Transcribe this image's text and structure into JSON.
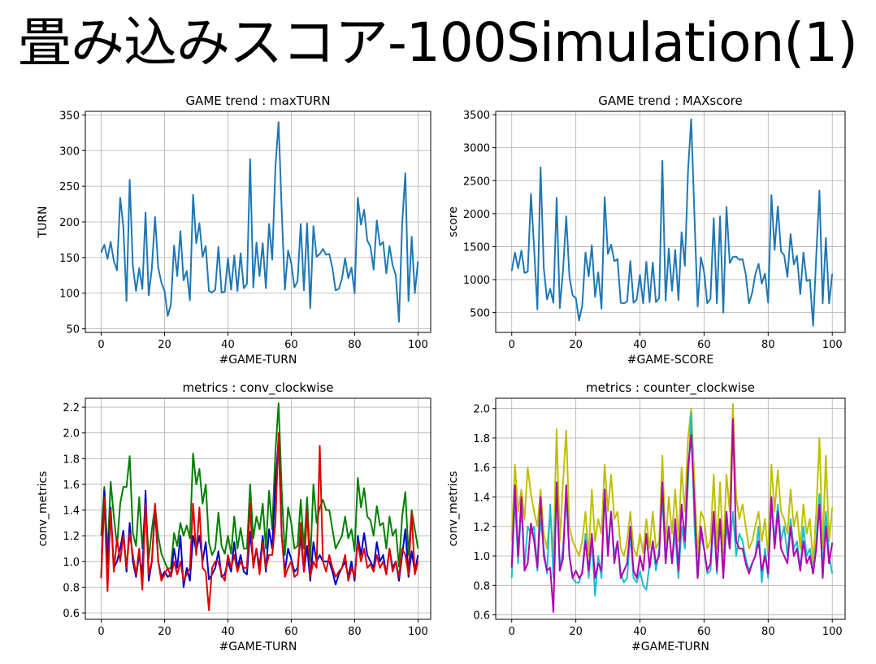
{
  "slide": {
    "title": "畳み込みスコア-100Simulation(1)"
  },
  "chart_data": [
    {
      "type": "line",
      "title": "GAME trend : maxTURN",
      "xlabel": "#GAME-TURN",
      "ylabel": "TURN",
      "xlim": [
        -5,
        104
      ],
      "ylim": [
        45,
        355
      ],
      "xticks": [
        0,
        20,
        40,
        60,
        80,
        100
      ],
      "yticks": [
        50,
        100,
        150,
        200,
        250,
        300,
        350
      ],
      "grid": true,
      "series": [
        {
          "color": "#1f77b4",
          "values": [
            157,
            168,
            148,
            172,
            145,
            132,
            234,
            193,
            89,
            259,
            138,
            103,
            135,
            106,
            213,
            97,
            135,
            207,
            136,
            115,
            103,
            68,
            84,
            167,
            124,
            187,
            118,
            131,
            90,
            238,
            170,
            198,
            151,
            166,
            103,
            101,
            105,
            165,
            101,
            102,
            149,
            105,
            153,
            103,
            156,
            107,
            113,
            288,
            108,
            171,
            124,
            170,
            107,
            197,
            147,
            276,
            340,
            215,
            105,
            160,
            142,
            108,
            117,
            197,
            104,
            198,
            79,
            194,
            151,
            155,
            162,
            154,
            155,
            135,
            104,
            106,
            120,
            149,
            121,
            136,
            100,
            234,
            196,
            217,
            174,
            165,
            133,
            202,
            167,
            172,
            128,
            166,
            139,
            125,
            60,
            197,
            268,
            89,
            179,
            100,
            145
          ]
        }
      ]
    },
    {
      "type": "line",
      "title": "GAME trend : MAXscore",
      "xlabel": "#GAME-SCORE",
      "ylabel": "score",
      "xlim": [
        -5,
        104
      ],
      "ylim": [
        200,
        3550
      ],
      "xticks": [
        0,
        20,
        40,
        60,
        80,
        100
      ],
      "yticks": [
        500,
        1000,
        1500,
        2000,
        2500,
        3000,
        3500
      ],
      "grid": true,
      "series": [
        {
          "color": "#1f77b4",
          "values": [
            1130,
            1410,
            1170,
            1440,
            1100,
            1120,
            2300,
            1470,
            550,
            2700,
            1170,
            700,
            860,
            650,
            2240,
            570,
            1130,
            1960,
            1050,
            760,
            720,
            380,
            610,
            1410,
            1050,
            1520,
            740,
            1110,
            560,
            2250,
            1390,
            1530,
            1280,
            1310,
            650,
            640,
            670,
            1280,
            650,
            700,
            1070,
            640,
            1270,
            660,
            1260,
            660,
            720,
            2800,
            680,
            1470,
            830,
            1450,
            690,
            1720,
            1210,
            2650,
            3430,
            1960,
            590,
            1340,
            1120,
            640,
            710,
            1930,
            640,
            1960,
            500,
            2100,
            1250,
            1340,
            1350,
            1300,
            1310,
            1080,
            640,
            800,
            1080,
            1240,
            940,
            1090,
            650,
            2280,
            1450,
            2110,
            1430,
            1370,
            1040,
            1690,
            1230,
            1360,
            780,
            1410,
            980,
            1000,
            300,
            1370,
            2350,
            640,
            1630,
            640,
            1090
          ]
        }
      ]
    },
    {
      "type": "line",
      "title": "metrics : conv_clockwise",
      "xlabel": "#GAME-TURN",
      "ylabel": "conv_metrics",
      "xlim": [
        -5,
        104
      ],
      "ylim": [
        0.55,
        2.27
      ],
      "xticks": [
        0,
        20,
        40,
        60,
        80,
        100
      ],
      "yticks": [
        0.6,
        0.8,
        1.0,
        1.2,
        1.4,
        1.6,
        1.8,
        2.0,
        2.2
      ],
      "grid": true,
      "series": [
        {
          "color": "#008000",
          "values": [
            1.2,
            1.58,
            1.05,
            1.62,
            1.35,
            1.12,
            1.45,
            1.58,
            1.58,
            1.82,
            1.22,
            1.12,
            1.5,
            1.1,
            1.46,
            1.02,
            1.25,
            1.43,
            1.2,
            1.06,
            1.0,
            0.94,
            0.95,
            1.22,
            1.12,
            1.3,
            1.2,
            1.28,
            1.18,
            1.84,
            1.6,
            1.72,
            1.45,
            1.6,
            1.15,
            1.05,
            1.1,
            1.38,
            1.12,
            1.06,
            1.2,
            1.06,
            1.35,
            1.1,
            1.26,
            1.1,
            1.1,
            1.6,
            1.18,
            1.35,
            1.25,
            1.45,
            1.1,
            1.55,
            1.25,
            1.85,
            2.23,
            1.55,
            1.05,
            1.42,
            1.3,
            1.1,
            1.12,
            1.48,
            1.1,
            1.5,
            1.0,
            1.6,
            1.3,
            1.42,
            1.48,
            1.4,
            1.4,
            1.25,
            1.1,
            1.15,
            1.2,
            1.35,
            1.18,
            1.25,
            1.08,
            1.65,
            1.42,
            1.57,
            1.35,
            1.32,
            1.2,
            1.43,
            1.28,
            1.3,
            1.1,
            1.35,
            1.2,
            1.25,
            0.96,
            1.35,
            1.54,
            1.05,
            1.4,
            1.25,
            1.1
          ]
        },
        {
          "color": "#0000cc",
          "values": [
            0.88,
            1.55,
            0.98,
            1.42,
            0.95,
            1.0,
            1.1,
            1.24,
            0.92,
            1.3,
            1.0,
            0.88,
            1.05,
            0.9,
            1.55,
            0.85,
            1.0,
            1.4,
            1.0,
            0.88,
            0.92,
            0.88,
            0.9,
            1.1,
            0.95,
            1.2,
            0.8,
            0.95,
            0.85,
            1.2,
            1.08,
            1.2,
            1.0,
            1.15,
            0.86,
            0.9,
            0.95,
            1.08,
            0.88,
            0.9,
            1.0,
            0.92,
            1.15,
            0.95,
            1.05,
            0.92,
            0.9,
            1.23,
            0.98,
            1.1,
            0.95,
            1.2,
            0.92,
            1.25,
            1.1,
            1.6,
            1.95,
            1.2,
            0.92,
            1.1,
            1.02,
            0.92,
            0.95,
            1.2,
            0.92,
            1.12,
            0.85,
            1.15,
            1.0,
            1.05,
            1.0,
            1.0,
            1.0,
            0.92,
            0.82,
            0.9,
            0.95,
            1.0,
            0.88,
            1.0,
            0.85,
            1.2,
            1.05,
            1.22,
            1.05,
            1.0,
            0.95,
            1.15,
            1.0,
            1.05,
            0.9,
            1.1,
            0.95,
            1.0,
            0.85,
            1.05,
            1.25,
            0.88,
            1.08,
            0.92,
            1.05
          ]
        },
        {
          "color": "#dd0000",
          "values": [
            0.87,
            1.5,
            0.77,
            1.4,
            0.92,
            1.18,
            1.0,
            1.2,
            0.95,
            1.22,
            1.05,
            0.9,
            1.1,
            0.78,
            1.45,
            0.9,
            1.0,
            1.45,
            1.0,
            0.85,
            0.9,
            0.95,
            0.88,
            1.0,
            0.9,
            1.0,
            0.85,
            0.9,
            0.95,
            1.45,
            1.05,
            1.42,
            0.95,
            0.92,
            0.62,
            0.95,
            1.0,
            1.0,
            0.9,
            0.85,
            1.05,
            0.95,
            1.05,
            0.92,
            1.0,
            0.95,
            0.95,
            1.45,
            0.95,
            1.1,
            0.9,
            1.15,
            0.95,
            1.05,
            1.05,
            1.3,
            2.0,
            1.2,
            0.88,
            0.95,
            1.0,
            0.88,
            0.9,
            1.3,
            0.92,
            1.4,
            0.88,
            1.0,
            0.95,
            1.9,
            1.0,
            0.92,
            1.05,
            0.95,
            0.88,
            0.92,
            0.95,
            1.05,
            0.85,
            0.95,
            0.88,
            1.15,
            1.0,
            1.1,
            0.95,
            0.98,
            0.92,
            1.05,
            0.95,
            1.0,
            0.9,
            1.1,
            0.92,
            1.0,
            0.88,
            1.1,
            1.05,
            0.9,
            1.38,
            0.9,
            1.0
          ]
        }
      ]
    },
    {
      "type": "line",
      "title": "metrics : counter_clockwise",
      "xlabel": "#GAME-TURN",
      "ylabel": "conv_metrics",
      "xlim": [
        -5,
        104
      ],
      "ylim": [
        0.57,
        2.07
      ],
      "xticks": [
        0,
        20,
        40,
        60,
        80,
        100
      ],
      "yticks": [
        0.6,
        0.8,
        1.0,
        1.2,
        1.4,
        1.6,
        1.8,
        2.0
      ],
      "grid": true,
      "series": [
        {
          "color": "#bfbf00",
          "values": [
            1.1,
            1.62,
            1.3,
            1.45,
            1.25,
            1.6,
            1.42,
            1.3,
            1.2,
            1.45,
            1.15,
            1.05,
            1.3,
            1.0,
            1.86,
            1.1,
            1.5,
            1.85,
            1.2,
            1.1,
            1.05,
            1.0,
            1.1,
            1.3,
            1.0,
            1.45,
            1.1,
            1.25,
            1.15,
            1.62,
            1.3,
            1.55,
            1.25,
            1.3,
            1.05,
            1.0,
            1.1,
            1.3,
            1.05,
            1.0,
            1.15,
            1.02,
            1.25,
            1.05,
            1.3,
            1.05,
            1.1,
            1.68,
            1.08,
            1.4,
            1.15,
            1.45,
            1.1,
            1.6,
            1.3,
            1.8,
            2.0,
            1.5,
            1.0,
            1.3,
            1.25,
            1.05,
            1.1,
            1.55,
            1.05,
            1.5,
            1.0,
            1.55,
            1.3,
            2.03,
            1.4,
            1.25,
            1.35,
            1.2,
            1.05,
            1.1,
            1.2,
            1.3,
            1.1,
            1.25,
            1.0,
            1.62,
            1.3,
            1.58,
            1.3,
            1.25,
            1.15,
            1.45,
            1.2,
            1.3,
            1.05,
            1.35,
            1.15,
            1.25,
            0.95,
            1.3,
            1.8,
            1.05,
            1.68,
            1.1,
            1.33
          ]
        },
        {
          "color": "#17becf",
          "values": [
            0.85,
            1.4,
            0.95,
            1.35,
            0.92,
            1.2,
            1.15,
            1.2,
            0.9,
            1.25,
            1.05,
            0.88,
            1.35,
            0.85,
            1.5,
            0.9,
            1.05,
            1.4,
            1.0,
            0.85,
            0.82,
            0.82,
            0.9,
            1.15,
            0.85,
            1.1,
            0.73,
            1.0,
            0.85,
            1.45,
            1.05,
            1.3,
            1.0,
            1.1,
            0.88,
            0.82,
            0.85,
            1.15,
            0.85,
            0.82,
            0.9,
            0.8,
            0.77,
            0.95,
            1.1,
            0.9,
            1.05,
            1.4,
            0.95,
            1.2,
            0.95,
            1.15,
            0.85,
            1.2,
            1.05,
            1.5,
            1.97,
            1.2,
            0.85,
            1.15,
            1.05,
            0.88,
            0.9,
            1.25,
            0.88,
            1.25,
            0.85,
            1.2,
            1.05,
            1.3,
            1.0,
            1.15,
            1.1,
            0.98,
            0.9,
            0.95,
            1.0,
            1.2,
            0.82,
            1.05,
            0.85,
            1.35,
            1.1,
            1.35,
            1.1,
            1.2,
            1.0,
            1.25,
            1.05,
            1.1,
            0.9,
            1.2,
            1.0,
            1.05,
            0.88,
            1.1,
            1.42,
            0.9,
            1.3,
            1.0,
            0.88
          ]
        },
        {
          "color": "#b000b0",
          "values": [
            0.92,
            1.48,
            1.0,
            1.4,
            0.9,
            0.95,
            1.22,
            1.1,
            0.92,
            1.4,
            1.0,
            0.9,
            0.92,
            0.62,
            1.5,
            0.9,
            0.98,
            1.48,
            1.0,
            0.85,
            0.9,
            0.85,
            0.88,
            1.1,
            0.9,
            1.15,
            0.85,
            0.95,
            0.9,
            1.45,
            1.0,
            1.3,
            0.95,
            1.1,
            0.85,
            0.9,
            0.95,
            1.2,
            0.9,
            0.85,
            1.0,
            0.9,
            1.15,
            0.92,
            1.1,
            0.95,
            1.0,
            1.5,
            0.95,
            1.2,
            0.95,
            1.25,
            0.9,
            1.35,
            1.1,
            1.6,
            1.82,
            1.35,
            0.85,
            1.2,
            1.05,
            0.9,
            0.95,
            1.3,
            0.9,
            1.25,
            0.85,
            1.3,
            1.05,
            1.93,
            1.1,
            1.05,
            1.05,
            0.95,
            0.88,
            0.95,
            1.0,
            1.1,
            0.9,
            1.0,
            0.88,
            1.4,
            1.05,
            1.3,
            1.05,
            1.0,
            0.95,
            1.2,
            1.0,
            1.05,
            0.9,
            1.1,
            0.95,
            1.0,
            0.88,
            1.05,
            1.35,
            0.85,
            1.2,
            0.95,
            1.09
          ]
        }
      ]
    }
  ]
}
